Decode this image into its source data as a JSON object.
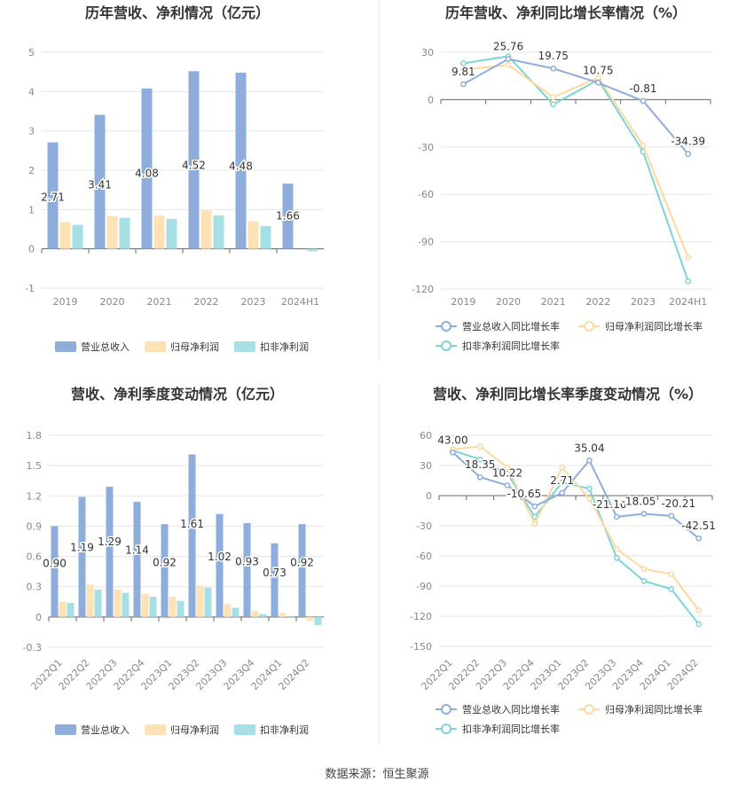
{
  "source_text": "数据来源：恒生聚源",
  "colors": {
    "revenue": "#8eaddb",
    "net_profit": "#fde2b5",
    "deducted_profit": "#a6e0e4",
    "revenue_line": "#8eaddb",
    "net_line": "#fdd9a0",
    "deducted_line": "#7dd3d8",
    "grid": "#e6e6e6",
    "axis": "#666666"
  },
  "chart_data": [
    {
      "type": "bar",
      "title": "历年营收、净利情况（亿元）",
      "categories": [
        "2019",
        "2020",
        "2021",
        "2022",
        "2023",
        "2024H1"
      ],
      "ylim": [
        -1,
        5
      ],
      "yticks": [
        -1,
        0,
        1,
        2,
        3,
        4,
        5
      ],
      "grid": true,
      "legend_position": "bottom",
      "series": [
        {
          "name": "营业总收入",
          "values": [
            2.71,
            3.41,
            4.08,
            4.52,
            4.48,
            1.66
          ],
          "labels": [
            "2.71",
            "3.41",
            "4.08",
            "4.52",
            "4.48",
            "1.66"
          ]
        },
        {
          "name": "归母净利润",
          "values": [
            0.68,
            0.83,
            0.85,
            0.98,
            0.7,
            0.0
          ]
        },
        {
          "name": "扣非净利润",
          "values": [
            0.61,
            0.79,
            0.76,
            0.85,
            0.58,
            -0.06
          ]
        }
      ]
    },
    {
      "type": "line",
      "title": "历年营收、净利同比增长率情况（%）",
      "categories": [
        "2019",
        "2020",
        "2021",
        "2022",
        "2023",
        "2024H1"
      ],
      "ylim": [
        -120,
        30
      ],
      "yticks": [
        -120,
        -90,
        -60,
        -30,
        0,
        30
      ],
      "grid": true,
      "legend_position": "bottom",
      "series": [
        {
          "name": "营业总收入同比增长率",
          "values": [
            9.81,
            25.76,
            19.75,
            10.75,
            -0.81,
            -34.39
          ],
          "labels": [
            "9.81",
            "25.76",
            "19.75",
            "10.75",
            "-0.81",
            "-34.39"
          ]
        },
        {
          "name": "归母净利润同比增长率",
          "values": [
            19.0,
            22.0,
            1.5,
            14.0,
            -29.0,
            -100.0
          ]
        },
        {
          "name": "扣非净利润同比增长率",
          "values": [
            23.0,
            27.5,
            -3.0,
            12.5,
            -33.0,
            -115.0
          ]
        }
      ]
    },
    {
      "type": "bar",
      "title": "营收、净利季度变动情况（亿元）",
      "categories": [
        "2022Q1",
        "2022Q2",
        "2022Q3",
        "2022Q4",
        "2023Q1",
        "2023Q2",
        "2023Q3",
        "2023Q4",
        "2024Q1",
        "2024Q2"
      ],
      "ylim": [
        -0.3,
        1.8
      ],
      "yticks": [
        -0.3,
        0,
        0.3,
        0.6,
        0.9,
        1.2,
        1.5,
        1.8
      ],
      "grid": true,
      "legend_position": "bottom",
      "series": [
        {
          "name": "营业总收入",
          "values": [
            0.9,
            1.19,
            1.29,
            1.14,
            0.92,
            1.61,
            1.02,
            0.93,
            0.73,
            0.92
          ],
          "labels": [
            "0.90",
            "1.19",
            "1.29",
            "1.14",
            "0.92",
            "1.61",
            "1.02",
            "0.93",
            "0.73",
            "0.92"
          ]
        },
        {
          "name": "归母净利润",
          "values": [
            0.15,
            0.32,
            0.27,
            0.23,
            0.2,
            0.31,
            0.13,
            0.06,
            0.04,
            -0.04
          ]
        },
        {
          "name": "扣非净利润",
          "values": [
            0.14,
            0.27,
            0.24,
            0.2,
            0.16,
            0.29,
            0.09,
            0.03,
            0.01,
            -0.08
          ]
        }
      ]
    },
    {
      "type": "line",
      "title": "营收、净利同比增长率季度变动情况（%）",
      "categories": [
        "2022Q1",
        "2022Q2",
        "2022Q3",
        "2022Q4",
        "2023Q1",
        "2023Q2",
        "2023Q3",
        "2023Q4",
        "2024Q1",
        "2024Q2"
      ],
      "ylim": [
        -150,
        60
      ],
      "yticks": [
        -150,
        -120,
        -90,
        -60,
        -30,
        0,
        30,
        60
      ],
      "grid": true,
      "legend_position": "bottom",
      "series": [
        {
          "name": "营业总收入同比增长率",
          "values": [
            43.0,
            18.35,
            10.22,
            -10.65,
            2.71,
            35.04,
            -21.1,
            -18.05,
            -20.21,
            -42.51
          ],
          "labels": [
            "43.00",
            "18.35",
            "10.22",
            "-10.65",
            "2.71",
            "35.04",
            "-21.10",
            "-18.05",
            "-20.21",
            "-42.51"
          ]
        },
        {
          "name": "归母净利润同比增长率",
          "values": [
            46.0,
            49.0,
            28.0,
            -28.0,
            28.0,
            -3.0,
            -53.0,
            -73.0,
            -78.0,
            -114.0
          ]
        },
        {
          "name": "扣非净利润同比增长率",
          "values": [
            45.0,
            36.0,
            22.0,
            -21.0,
            13.0,
            7.0,
            -62.0,
            -85.0,
            -93.0,
            -128.0
          ]
        }
      ]
    }
  ]
}
